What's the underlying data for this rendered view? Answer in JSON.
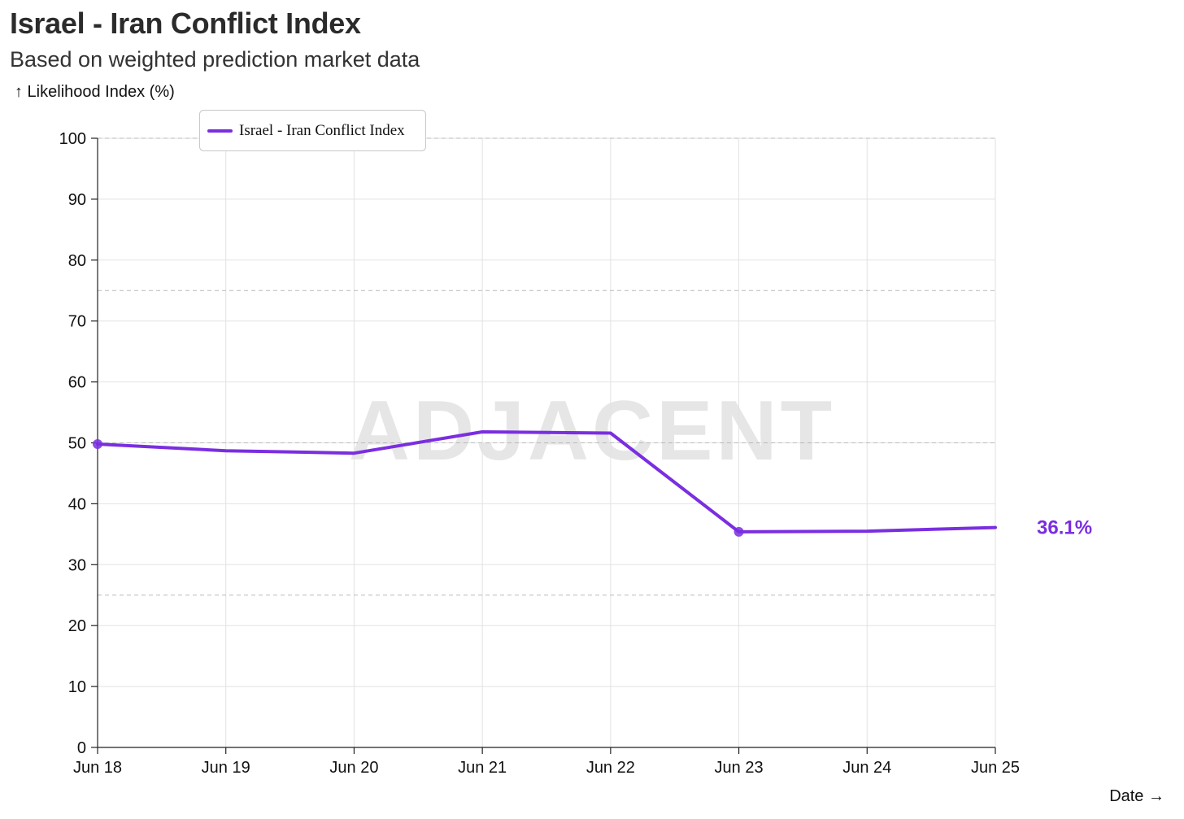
{
  "chart_data": {
    "type": "line",
    "title": "Israel - Iran Conflict Index",
    "subtitle": "Based on weighted prediction market data",
    "ylabel": "↑ Likelihood Index (%)",
    "xlabel": "Date →",
    "watermark": "ADJACENT",
    "ylim": [
      0,
      100
    ],
    "yticks": [
      0,
      10,
      20,
      30,
      40,
      50,
      60,
      70,
      80,
      90,
      100
    ],
    "reference_lines": [
      25,
      50,
      75,
      100
    ],
    "grid": true,
    "legend_position": "top-left",
    "categories": [
      "Jun 18",
      "Jun 19",
      "Jun 20",
      "Jun 21",
      "Jun 22",
      "Jun 23",
      "Jun 24",
      "Jun 25"
    ],
    "series": [
      {
        "name": "Israel - Iran Conflict Index",
        "color": "#7a2ee0",
        "x": [
          0,
          1,
          2,
          3,
          4,
          5,
          6,
          7
        ],
        "values": [
          49.8,
          48.7,
          48.3,
          51.8,
          51.6,
          35.4,
          35.5,
          36.1
        ],
        "markers_at": [
          0,
          5
        ]
      }
    ],
    "end_label": "36.1%"
  }
}
